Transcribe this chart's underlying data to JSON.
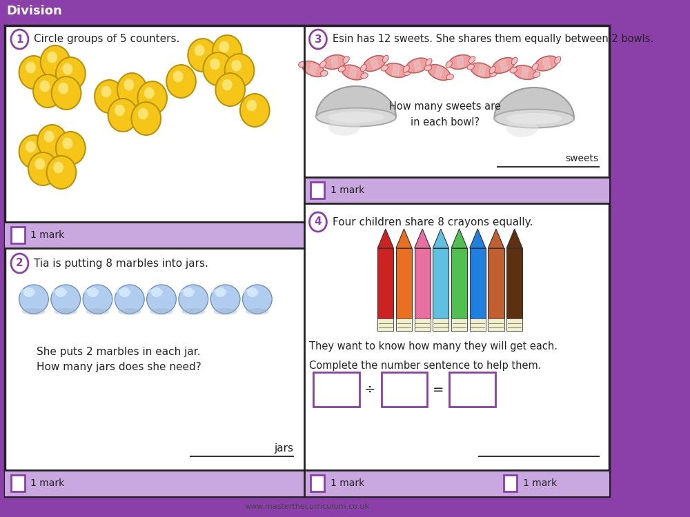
{
  "title": "Division",
  "title_bg": "#9b59b6",
  "title_color": "#ffffff",
  "bg_color": "#ffffff",
  "purple_light": "#c9a8e0",
  "purple_medium": "#8b3fa8",
  "q1_text": "Circle groups of 5 counters.",
  "q2_text": "Tia is putting 8 marbles into jars.",
  "q2_subtext1": "She puts 2 marbles in each jar.",
  "q2_subtext2": "How many jars does she need?",
  "q2_answer_label": "jars",
  "q3_text": "Esin has 12 sweets. She shares them equally between 2 bowls.",
  "q3_subtext1": "How many sweets are",
  "q3_subtext2": "in each bowl?",
  "q3_answer_label": "sweets",
  "q4_text": "Four children share 8 crayons equally.",
  "q4_subtext1": "They want to know how many they will get each.",
  "q4_subtext2": "Complete the number sentence to help them.",
  "footer": "www.masterthecurriculum.co.uk",
  "mark_text": "1 mark",
  "counter_color": "#f5c518",
  "crayon_colors": [
    "#cc2222",
    "#e87020",
    "#e870a0",
    "#60c0e0",
    "#50c050",
    "#2080e0",
    "#c06030",
    "#5d3010"
  ]
}
